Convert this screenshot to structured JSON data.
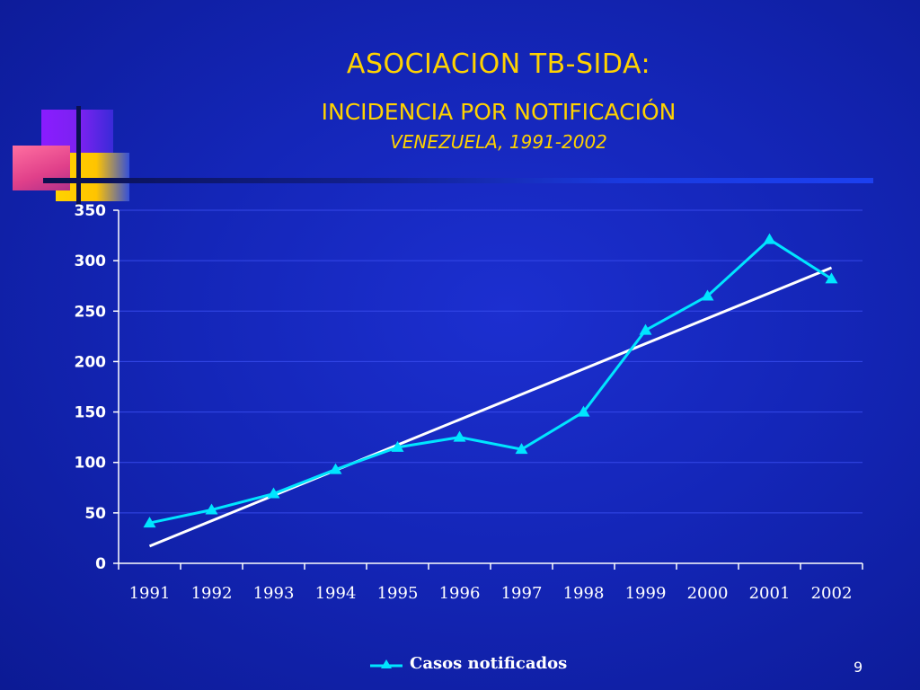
{
  "slide": {
    "title": "ASOCIACION TB-SIDA:",
    "subtitle": "INCIDENCIA POR NOTIFICACIÓN",
    "subtitle2": "VENEZUELA,  1991-2002",
    "page_number": "9"
  },
  "colors": {
    "background": "#1426b8",
    "title": "#ffd200",
    "series": "#00e5ff",
    "trendline": "#ffffff"
  },
  "chart_data": {
    "type": "line",
    "categories": [
      "1991",
      "1992",
      "1993",
      "1994",
      "1995",
      "1996",
      "1997",
      "1998",
      "1999",
      "2000",
      "2001",
      "2002"
    ],
    "series": [
      {
        "name": "Casos notificados",
        "marker": "triangle",
        "values": [
          40,
          53,
          69,
          93,
          115,
          125,
          113,
          150,
          231,
          265,
          321,
          282
        ]
      }
    ],
    "trendline": {
      "type": "linear",
      "start": 17,
      "end": 293
    },
    "ylim": [
      0,
      350
    ],
    "yticks": [
      0,
      50,
      100,
      150,
      200,
      250,
      300,
      350
    ],
    "grid": true,
    "legend": "bottom"
  }
}
